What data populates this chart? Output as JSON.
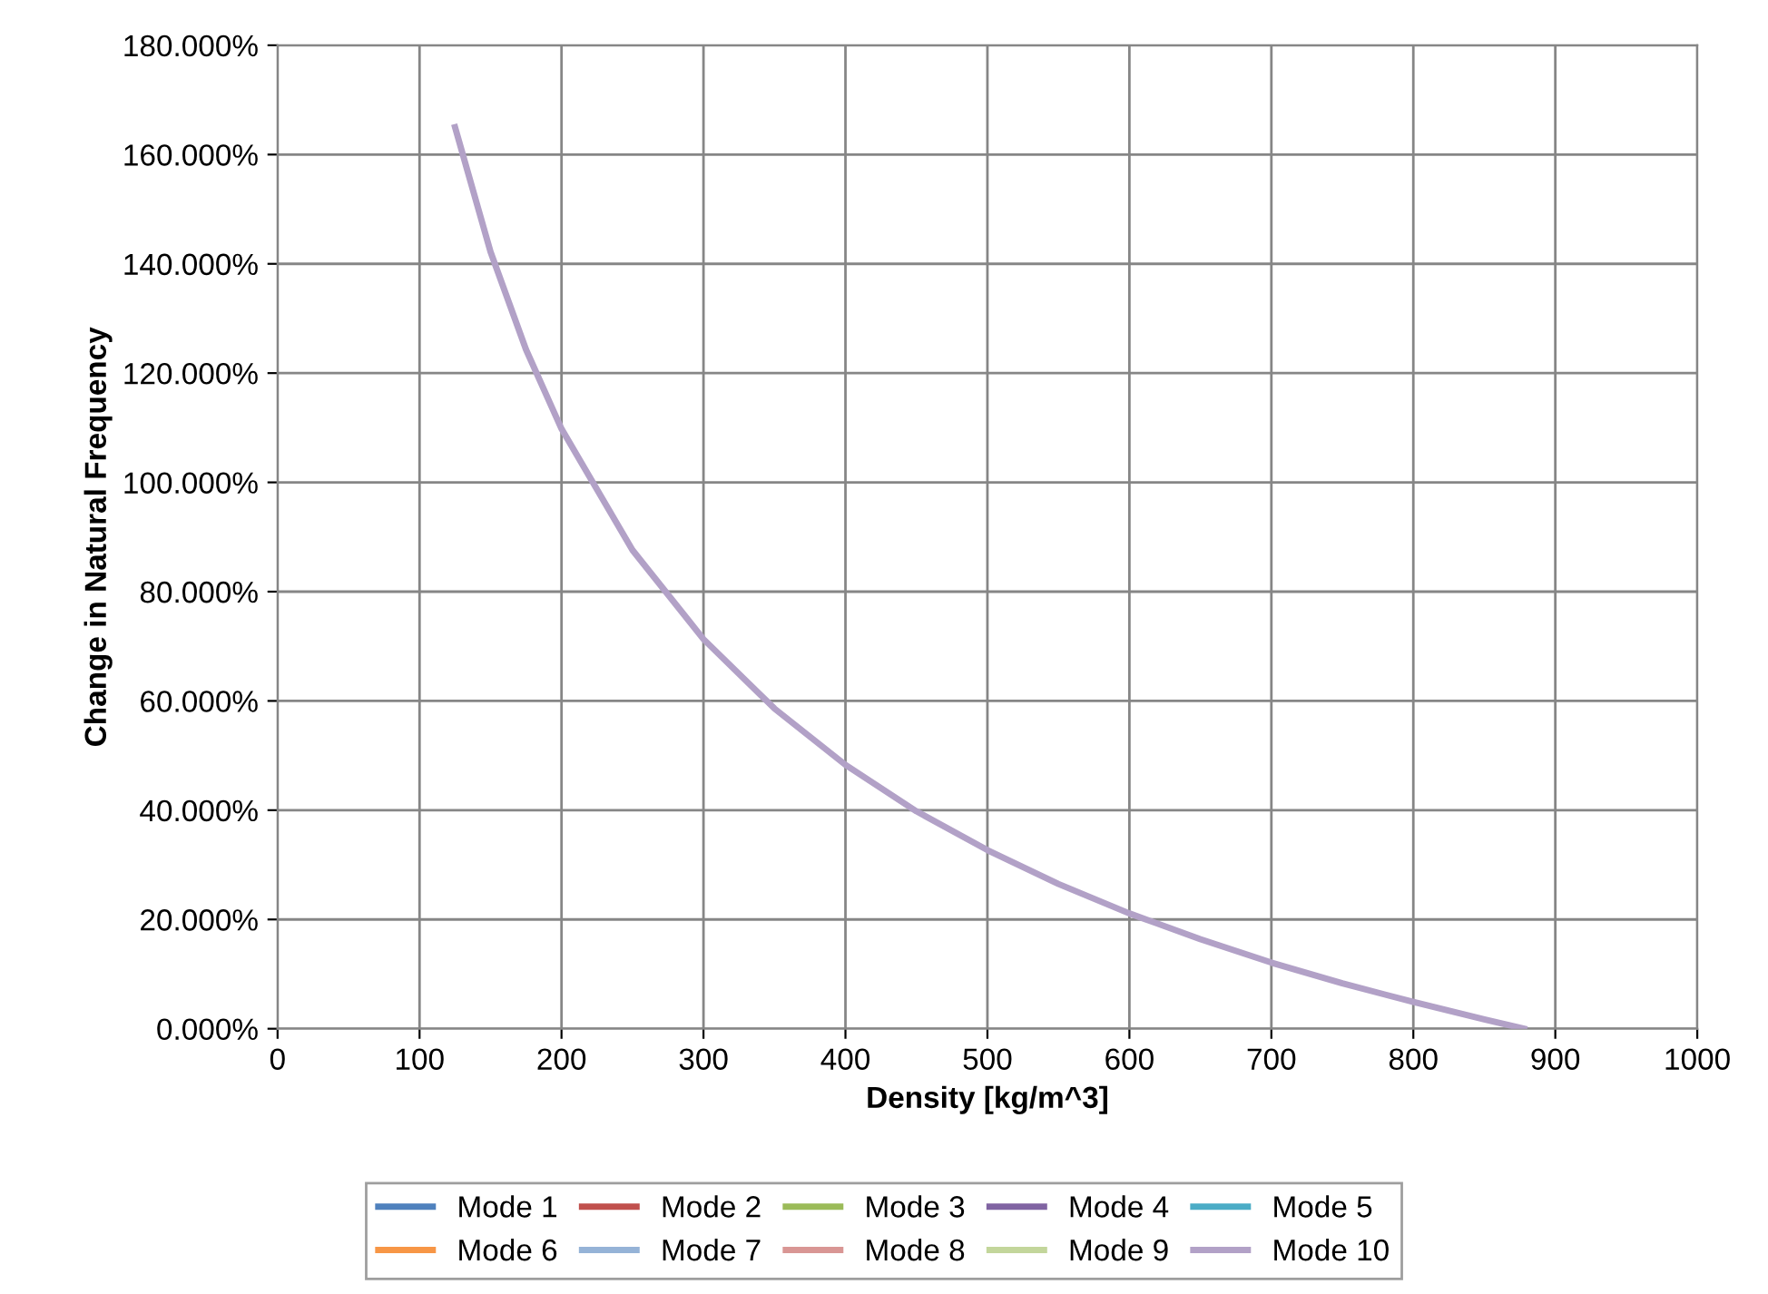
{
  "chart_data": {
    "type": "line",
    "xlabel": "Density [kg/m^3]",
    "ylabel": "Change in Natural Frequency",
    "x": [
      125,
      150,
      175,
      200,
      250,
      300,
      350,
      400,
      450,
      500,
      550,
      600,
      650,
      700,
      750,
      800,
      850,
      878
    ],
    "series": [
      {
        "name": "Mode 1",
        "color": "#4f81bd",
        "values": [
          null,
          null,
          null,
          null,
          null,
          null,
          null,
          null,
          null,
          null,
          null,
          null,
          null,
          null,
          null,
          null,
          null,
          null
        ]
      },
      {
        "name": "Mode 2",
        "color": "#c0504d",
        "values": [
          null,
          null,
          null,
          null,
          null,
          null,
          null,
          null,
          null,
          null,
          null,
          null,
          null,
          null,
          null,
          null,
          null,
          null
        ]
      },
      {
        "name": "Mode 3",
        "color": "#9bbb59",
        "values": [
          null,
          null,
          null,
          null,
          null,
          null,
          null,
          null,
          null,
          null,
          null,
          null,
          null,
          null,
          null,
          null,
          null,
          null
        ]
      },
      {
        "name": "Mode 4",
        "color": "#8064a2",
        "values": [
          null,
          null,
          null,
          null,
          null,
          null,
          null,
          null,
          null,
          null,
          null,
          null,
          null,
          null,
          null,
          null,
          null,
          null
        ]
      },
      {
        "name": "Mode 5",
        "color": "#4bacc6",
        "values": [
          null,
          null,
          null,
          null,
          null,
          null,
          null,
          null,
          null,
          null,
          null,
          null,
          null,
          null,
          null,
          null,
          null,
          null
        ]
      },
      {
        "name": "Mode 6",
        "color": "#f79646",
        "values": [
          null,
          null,
          null,
          null,
          null,
          null,
          null,
          null,
          null,
          null,
          null,
          null,
          null,
          null,
          null,
          null,
          null,
          null
        ]
      },
      {
        "name": "Mode 7",
        "color": "#95b3d7",
        "values": [
          null,
          null,
          null,
          null,
          null,
          null,
          null,
          null,
          null,
          null,
          null,
          null,
          null,
          null,
          null,
          null,
          null,
          null
        ]
      },
      {
        "name": "Mode 8",
        "color": "#d99694",
        "values": [
          null,
          null,
          null,
          null,
          null,
          null,
          null,
          null,
          null,
          null,
          null,
          null,
          null,
          null,
          null,
          null,
          null,
          null
        ]
      },
      {
        "name": "Mode 9",
        "color": "#c3d69b",
        "values": [
          null,
          null,
          null,
          null,
          null,
          null,
          null,
          null,
          null,
          null,
          null,
          null,
          null,
          null,
          null,
          null,
          null,
          null
        ]
      },
      {
        "name": "Mode 10",
        "color": "#b2a1c7",
        "values": [
          165,
          142.2,
          124.3,
          109.8,
          87.6,
          71.3,
          58.6,
          48.3,
          39.8,
          32.7,
          26.5,
          21.1,
          16.4,
          12.1,
          8.3,
          4.9,
          1.7,
          0
        ]
      }
    ],
    "xlim": [
      0,
      1000
    ],
    "xticks": [
      0,
      100,
      200,
      300,
      400,
      500,
      600,
      700,
      800,
      900,
      1000
    ],
    "ylim": [
      0,
      180
    ],
    "yticks": [
      {
        "value": 0,
        "label": "0.000%"
      },
      {
        "value": 20,
        "label": "20.000%"
      },
      {
        "value": 40,
        "label": "40.000%"
      },
      {
        "value": 60,
        "label": "60.000%"
      },
      {
        "value": 80,
        "label": "80.000%"
      },
      {
        "value": 100,
        "label": "100.000%"
      },
      {
        "value": 120,
        "label": "120.000%"
      },
      {
        "value": 140,
        "label": "140.000%"
      },
      {
        "value": 160,
        "label": "160.000%"
      },
      {
        "value": 180,
        "label": "180.000%"
      }
    ],
    "grid": true,
    "legend": "bottom",
    "marker": "none",
    "line_style": "solid"
  }
}
